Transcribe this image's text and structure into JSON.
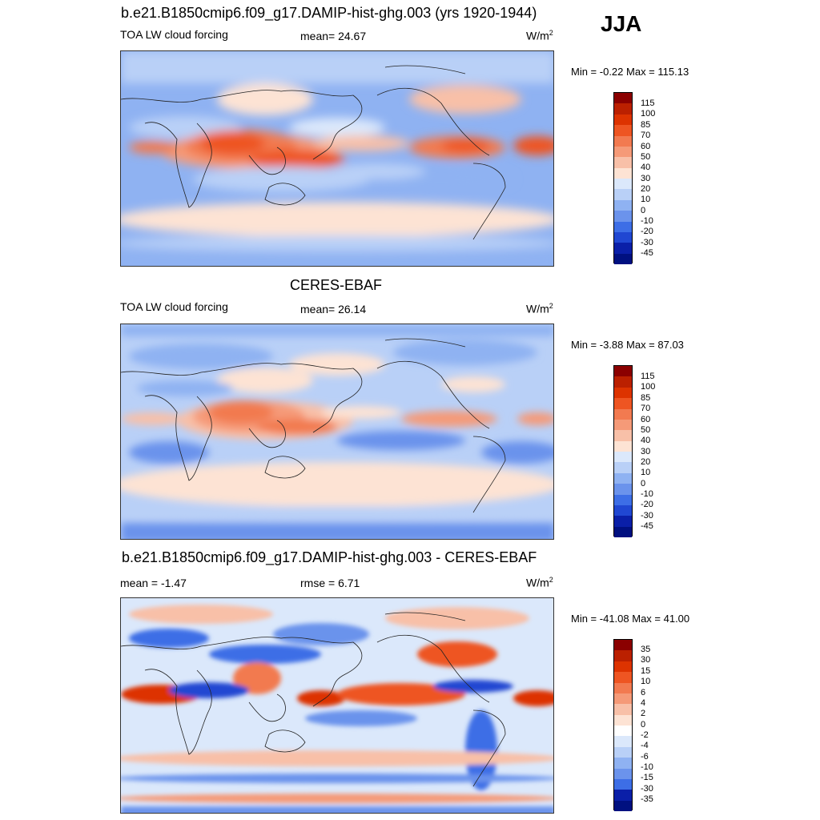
{
  "season": "JJA",
  "panels": [
    {
      "title": "b.e21.B1850cmip6.f09_g17.DAMIP-hist-ghg.003 (yrs 1920-1944)",
      "left_label": "TOA LW cloud forcing",
      "center_label": "mean=  24.67",
      "units": "W/m",
      "units_sup": "2",
      "minmax": "Min =  -0.22 Max = 115.13",
      "bar_labels": [
        "115",
        "100",
        "85",
        "70",
        "60",
        "50",
        "40",
        "30",
        "20",
        "10",
        "0",
        "-10",
        "-20",
        "-30",
        "-45"
      ],
      "bar_colors": [
        "#8b0000",
        "#bb2000",
        "#dd3300",
        "#ee5522",
        "#f27a50",
        "#f59a78",
        "#f8c0a8",
        "#fde3d4",
        "#dbe8fb",
        "#b9d0f7",
        "#8fb2f2",
        "#6b93ec",
        "#3d6ee6",
        "#2047d2",
        "#0a1fa8",
        "#001080"
      ]
    },
    {
      "title": "CERES-EBAF",
      "left_label": "TOA LW cloud forcing",
      "center_label": "mean=  26.14",
      "units": "W/m",
      "units_sup": "2",
      "minmax": "Min =  -3.88 Max =  87.03",
      "bar_labels": [
        "115",
        "100",
        "85",
        "70",
        "60",
        "50",
        "40",
        "30",
        "20",
        "10",
        "0",
        "-10",
        "-20",
        "-30",
        "-45"
      ],
      "bar_colors": [
        "#8b0000",
        "#bb2000",
        "#dd3300",
        "#ee5522",
        "#f27a50",
        "#f59a78",
        "#f8c0a8",
        "#fde3d4",
        "#dbe8fb",
        "#b9d0f7",
        "#8fb2f2",
        "#6b93ec",
        "#3d6ee6",
        "#2047d2",
        "#0a1fa8",
        "#001080"
      ]
    },
    {
      "title": "b.e21.B1850cmip6.f09_g17.DAMIP-hist-ghg.003 - CERES-EBAF",
      "left_label": "mean =  -1.47",
      "center_label": "rmse =   6.71",
      "units": "W/m",
      "units_sup": "2",
      "minmax": "Min = -41.08 Max =  41.00",
      "bar_labels": [
        "35",
        "30",
        "15",
        "10",
        "6",
        "4",
        "2",
        "0",
        "-2",
        "-4",
        "-6",
        "-10",
        "-15",
        "-30",
        "-35"
      ],
      "bar_colors": [
        "#8b0000",
        "#bb2000",
        "#dd3300",
        "#ee5522",
        "#f27a50",
        "#f59a78",
        "#f8c0a8",
        "#fde3d4",
        "#ffffff",
        "#dbe8fb",
        "#b9d0f7",
        "#8fb2f2",
        "#6b93ec",
        "#3d6ee6",
        "#0a1fa8",
        "#001080"
      ]
    }
  ]
}
